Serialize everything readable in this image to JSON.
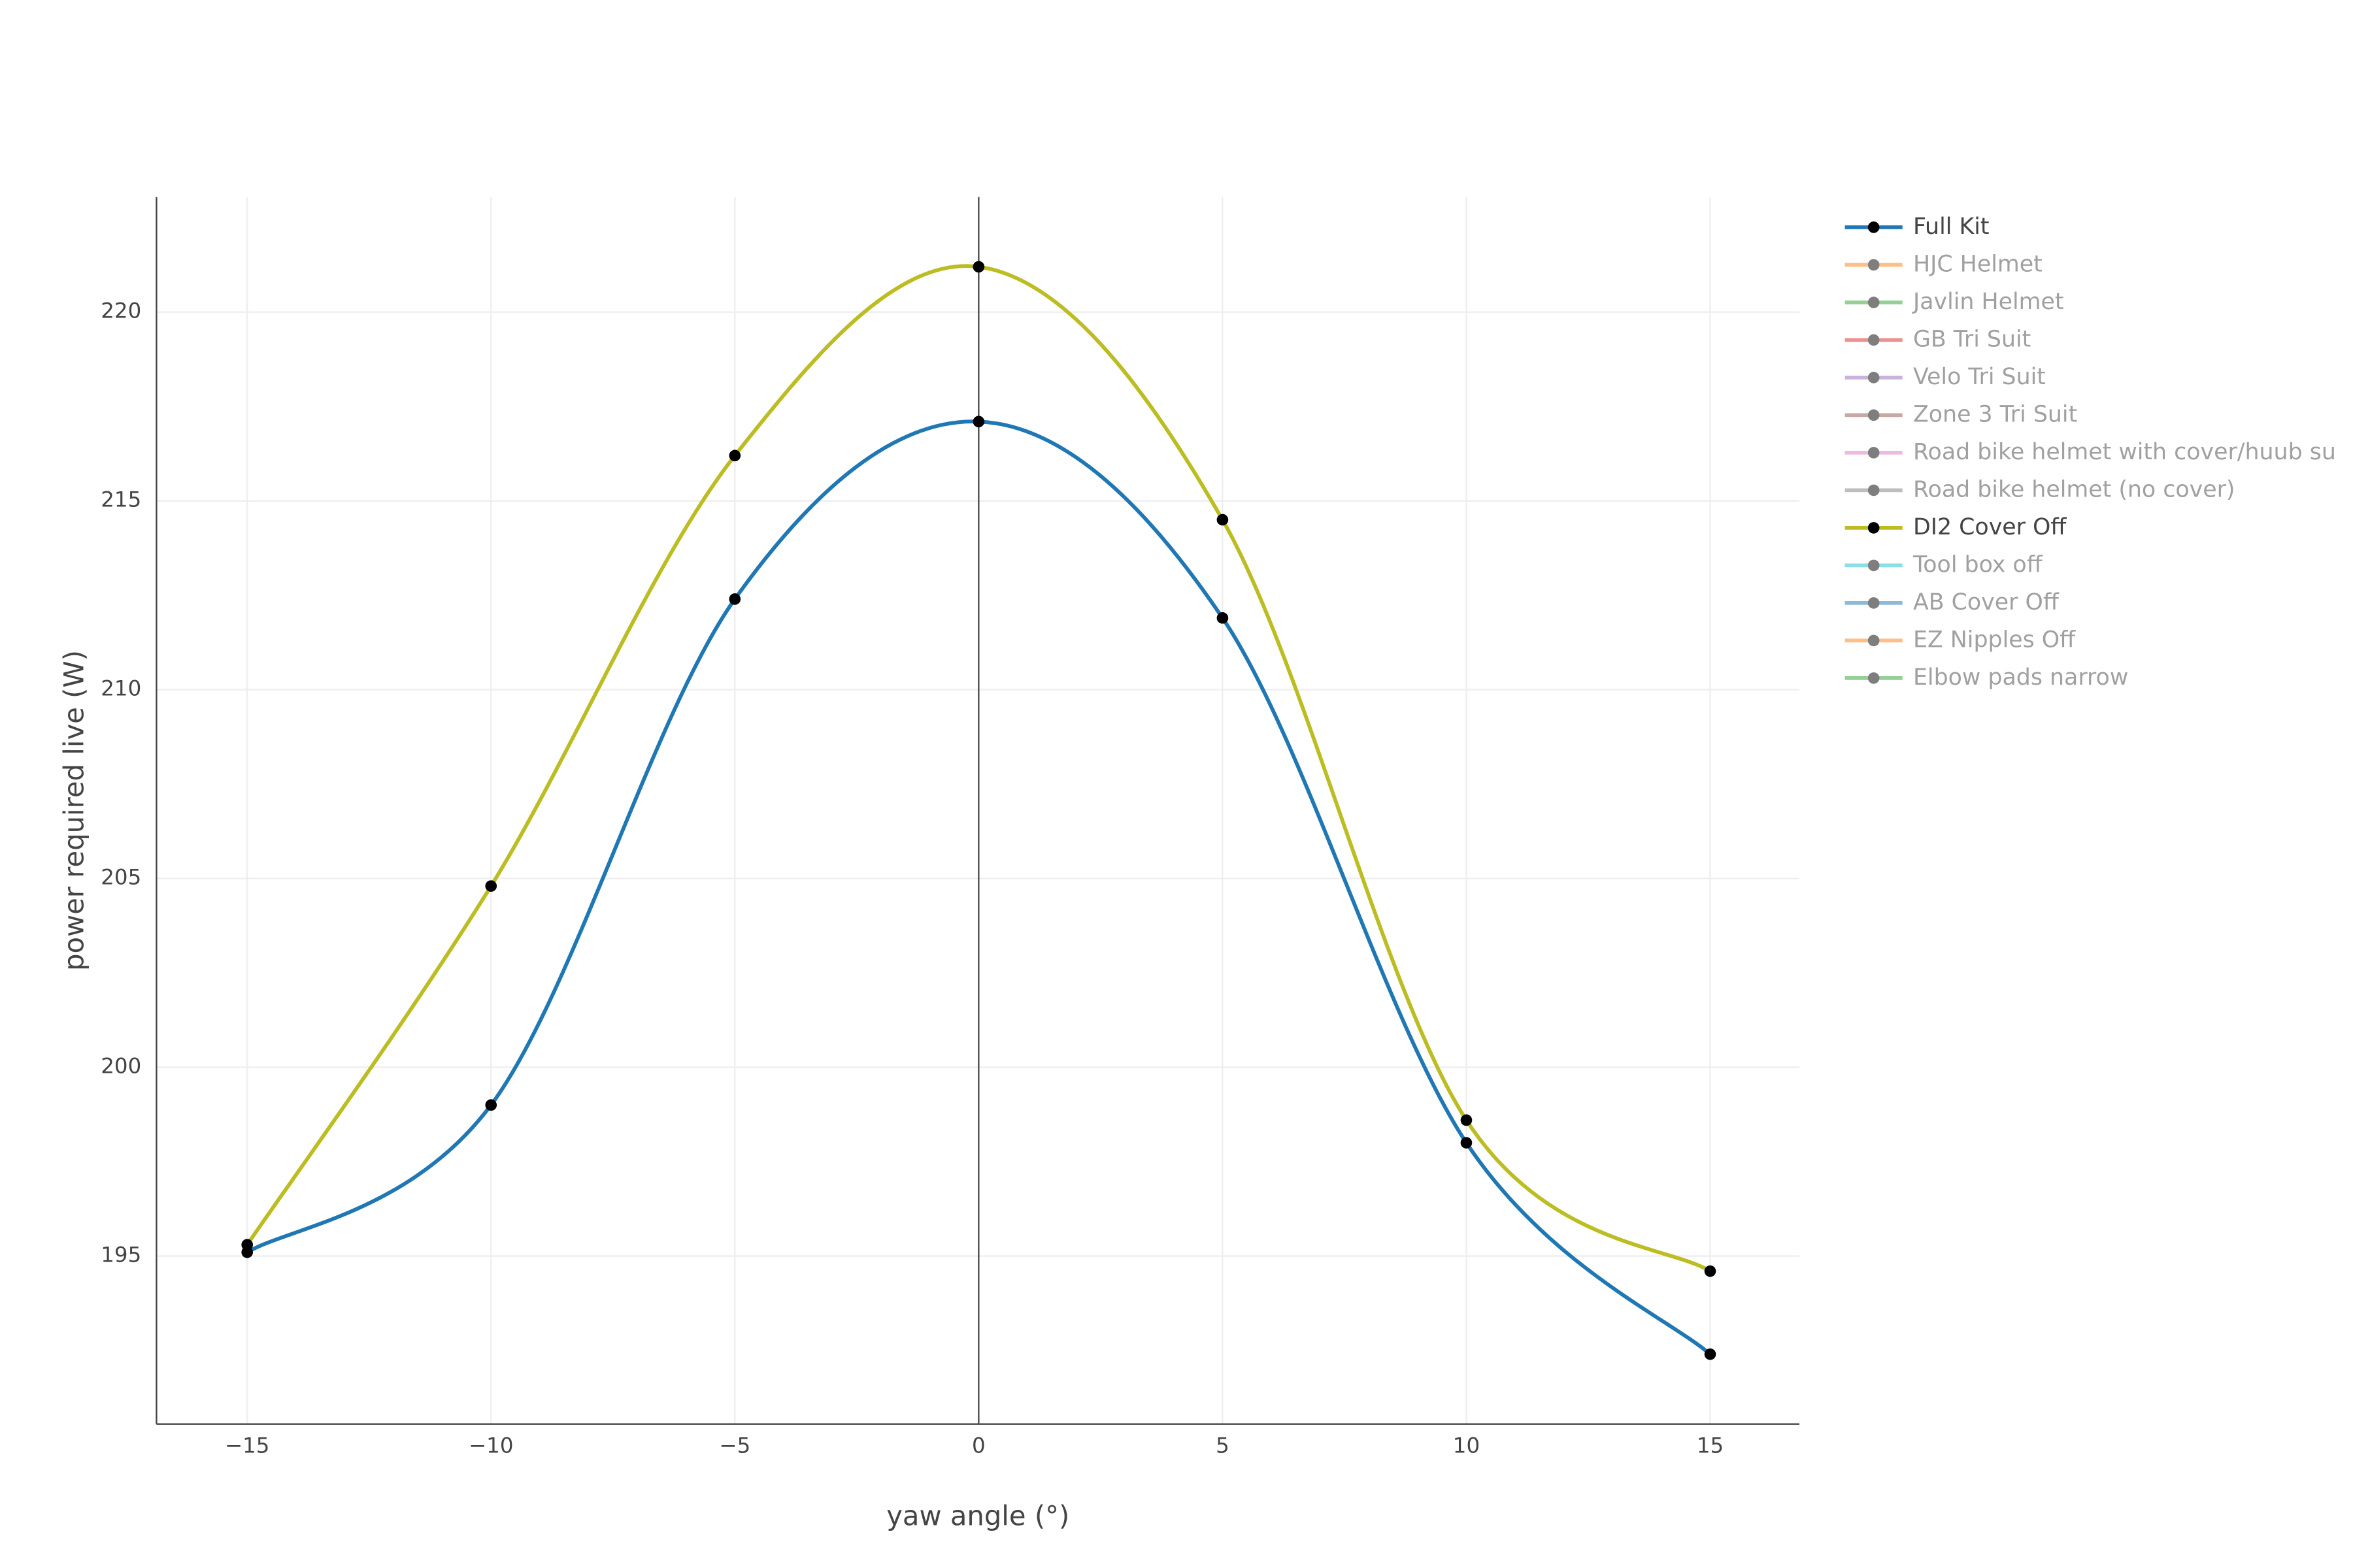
{
  "chart_data": {
    "type": "line",
    "xlabel": "yaw angle (°)",
    "ylabel": "power required live (W)",
    "x": [
      -15,
      -10,
      -5,
      0,
      5,
      10,
      15
    ],
    "series": [
      {
        "name": "Full Kit",
        "color": "#1f77b4",
        "values": [
          195.1,
          199.0,
          212.4,
          217.1,
          211.9,
          198.0,
          192.4
        ]
      },
      {
        "name": "HJC Helmet",
        "color": "#ff7f0e",
        "visible": "legendonly"
      },
      {
        "name": "Javlin Helmet",
        "color": "#2ca02c",
        "visible": "legendonly"
      },
      {
        "name": "GB Tri Suit",
        "color": "#d62728",
        "visible": "legendonly"
      },
      {
        "name": "Velo Tri Suit",
        "color": "#9467bd",
        "visible": "legendonly"
      },
      {
        "name": "Zone 3 Tri Suit",
        "color": "#8c564b",
        "visible": "legendonly"
      },
      {
        "name": "Road bike helmet with cover/huub su",
        "color": "#e377c2",
        "visible": "legendonly"
      },
      {
        "name": "Road bike helmet (no cover)",
        "color": "#7f7f7f",
        "visible": "legendonly"
      },
      {
        "name": "DI2 Cover Off",
        "color": "#bcbd22",
        "values": [
          195.3,
          204.8,
          216.2,
          221.2,
          214.5,
          198.6,
          194.6
        ]
      },
      {
        "name": "Tool box off",
        "color": "#17becf",
        "visible": "legendonly"
      },
      {
        "name": "AB Cover Off",
        "color": "#1f77b4",
        "visible": "legendonly"
      },
      {
        "name": "EZ Nipples Off",
        "color": "#ff7f0e",
        "visible": "legendonly"
      },
      {
        "name": "Elbow pads narrow",
        "color": "#2ca02c",
        "visible": "legendonly"
      }
    ],
    "xlim": [
      -16.86,
      16.83
    ],
    "ylim": [
      190.55,
      223.05
    ],
    "xticks": [
      {
        "value": -15,
        "label": "−15"
      },
      {
        "value": -10,
        "label": "−10"
      },
      {
        "value": -5,
        "label": "−5"
      },
      0,
      5,
      10,
      15
    ],
    "yticks": [
      195,
      200,
      205,
      210,
      215,
      220
    ],
    "grid": true,
    "legend": "right"
  }
}
